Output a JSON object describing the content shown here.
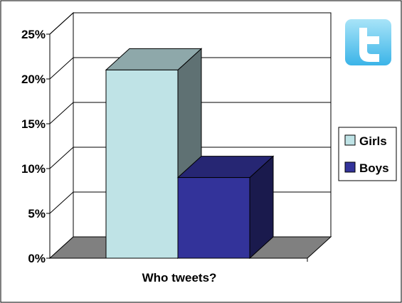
{
  "chart_data": {
    "type": "bar",
    "categories": [
      "Who tweets?"
    ],
    "series": [
      {
        "name": "Girls",
        "values": [
          21
        ],
        "color": "#BFE3E6",
        "side_color": "#5F7173",
        "top_color": "#8EA8AA"
      },
      {
        "name": "Boys",
        "values": [
          9
        ],
        "color": "#33339A",
        "side_color": "#1A1A4D",
        "top_color": "#262673"
      }
    ],
    "xlabel": "Who tweets?",
    "ylabel": "",
    "ylim": [
      0,
      25
    ],
    "yticks": [
      0,
      5,
      10,
      15,
      20,
      25
    ],
    "ytick_labels": [
      "0%",
      "5%",
      "10%",
      "15%",
      "20%",
      "25%"
    ],
    "grid": true,
    "legend_position": "right",
    "floor_color": "#808080",
    "logo": "twitter-bird-logo"
  }
}
